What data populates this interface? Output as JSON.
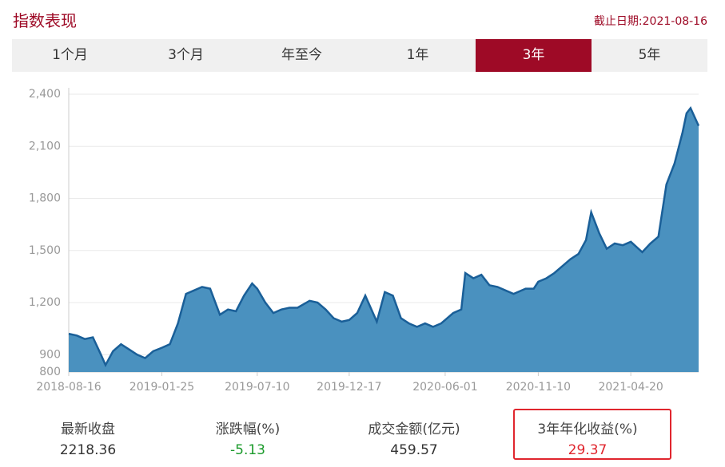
{
  "header": {
    "title": "指数表现",
    "date": "截止日期:2021-08-16"
  },
  "tabs": {
    "items": [
      "1个月",
      "3个月",
      "年至今",
      "1年",
      "3年",
      "5年"
    ],
    "active": 4
  },
  "chart_data": {
    "type": "area",
    "line_color": "#1a5f98",
    "fill_color": "#4a91bf",
    "x": [
      "2018-08-16",
      "2018-08-30",
      "2018-09-13",
      "2018-09-27",
      "2018-10-11",
      "2018-10-19",
      "2018-11-01",
      "2018-11-15",
      "2018-11-29",
      "2018-12-13",
      "2018-12-27",
      "2019-01-10",
      "2019-01-25",
      "2019-02-08",
      "2019-02-22",
      "2019-03-08",
      "2019-03-22",
      "2019-04-05",
      "2019-04-19",
      "2019-05-06",
      "2019-05-20",
      "2019-06-03",
      "2019-06-17",
      "2019-07-01",
      "2019-07-10",
      "2019-07-24",
      "2019-08-07",
      "2019-08-21",
      "2019-09-04",
      "2019-09-18",
      "2019-10-09",
      "2019-10-23",
      "2019-11-06",
      "2019-11-20",
      "2019-12-04",
      "2019-12-17",
      "2019-12-31",
      "2020-01-14",
      "2020-02-03",
      "2020-02-17",
      "2020-03-02",
      "2020-03-16",
      "2020-03-30",
      "2020-04-13",
      "2020-04-27",
      "2020-05-11",
      "2020-05-25",
      "2020-06-01",
      "2020-06-15",
      "2020-06-29",
      "2020-07-06",
      "2020-07-20",
      "2020-08-03",
      "2020-08-17",
      "2020-08-31",
      "2020-09-14",
      "2020-09-28",
      "2020-10-19",
      "2020-11-02",
      "2020-11-10",
      "2020-11-24",
      "2020-12-08",
      "2020-12-22",
      "2021-01-05",
      "2021-01-19",
      "2021-02-01",
      "2021-02-10",
      "2021-02-24",
      "2021-03-09",
      "2021-03-23",
      "2021-04-06",
      "2021-04-20",
      "2021-05-10",
      "2021-05-24",
      "2021-06-07",
      "2021-06-21",
      "2021-07-05",
      "2021-07-19",
      "2021-07-26",
      "2021-08-02",
      "2021-08-16"
    ],
    "values": [
      1020,
      1010,
      990,
      1000,
      900,
      840,
      920,
      960,
      930,
      900,
      880,
      920,
      940,
      960,
      1080,
      1250,
      1270,
      1290,
      1280,
      1130,
      1160,
      1150,
      1240,
      1310,
      1280,
      1200,
      1140,
      1160,
      1170,
      1170,
      1210,
      1200,
      1160,
      1110,
      1090,
      1100,
      1140,
      1240,
      1090,
      1260,
      1240,
      1110,
      1080,
      1060,
      1080,
      1060,
      1080,
      1100,
      1140,
      1160,
      1370,
      1340,
      1360,
      1300,
      1290,
      1270,
      1250,
      1280,
      1280,
      1320,
      1340,
      1370,
      1410,
      1450,
      1480,
      1560,
      1720,
      1600,
      1510,
      1540,
      1530,
      1550,
      1490,
      1540,
      1580,
      1880,
      2000,
      2180,
      2290,
      2320,
      2218
    ],
    "xlim": [
      "2018-08-16",
      "2021-08-16"
    ],
    "xticks": [
      "2018-08-16",
      "2019-01-25",
      "2019-07-10",
      "2019-12-17",
      "2020-06-01",
      "2020-11-10",
      "2021-04-20"
    ],
    "ylim": [
      800,
      2400
    ],
    "yticks": [
      800,
      900,
      {
        "value": 1200,
        "label": "1,200"
      },
      {
        "value": 1500,
        "label": "1,500"
      },
      {
        "value": 1800,
        "label": "1,800"
      },
      {
        "value": 2100,
        "label": "2,100"
      },
      {
        "value": 2400,
        "label": "2,400"
      }
    ],
    "grid": true
  },
  "stats": [
    {
      "label": "最新收盘",
      "value": 2218.36,
      "color": "#333333"
    },
    {
      "label": "涨跌幅(%)",
      "value": -5.13,
      "color": "#1a9a2a"
    },
    {
      "label": "成交金额(亿元)",
      "value": 459.57,
      "color": "#333333"
    },
    {
      "label": "3年年化收益(%)",
      "value": 29.37,
      "color": "#e0262e",
      "highlight": true
    }
  ]
}
